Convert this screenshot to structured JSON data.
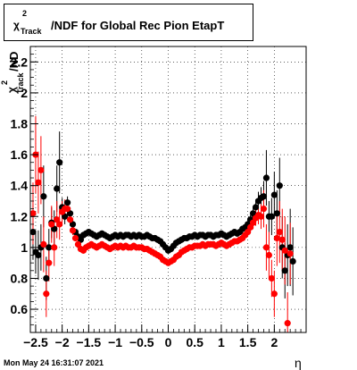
{
  "title": {
    "chi": "χ",
    "sup": "2",
    "sub": "Track",
    "rest": "/NDF for Global Rec Pion EtapT"
  },
  "ylabel": {
    "chi": "χ",
    "sup": "2",
    "sub": "Track",
    "rest": "/ND"
  },
  "xlabel": "η",
  "footer": "Mon May 24 16:31:07 2021",
  "chart_data": {
    "type": "scatter",
    "xlabel": "η",
    "ylabel": "χ²_Track/ND",
    "xlim": [
      -2.6,
      2.6
    ],
    "ylim": [
      0.45,
      2.3
    ],
    "grid": true,
    "x_ticks": [
      -2.5,
      -2,
      -1.5,
      -1,
      -0.5,
      0,
      0.5,
      1,
      1.5,
      2
    ],
    "x_tick_labels": [
      "−2.5",
      "−2",
      "−1.5",
      "−1",
      "−0.5",
      "0",
      "0.5",
      "1",
      "1.5",
      "2"
    ],
    "y_ticks": [
      0.6,
      0.8,
      1,
      1.2,
      1.4,
      1.6,
      1.8,
      2,
      2.2
    ],
    "y_tick_labels": [
      "0.6",
      "0.8",
      "1",
      "1.2",
      "1.4",
      "1.6",
      "1.8",
      "2",
      "2.2"
    ],
    "series": [
      {
        "color": "#000000",
        "points": [
          [
            -2.55,
            1.1,
            0.18
          ],
          [
            -2.5,
            0.97,
            0.14
          ],
          [
            -2.45,
            0.95,
            0.16
          ],
          [
            -2.4,
            1.0,
            0.15
          ],
          [
            -2.35,
            1.33,
            0.2
          ],
          [
            -2.3,
            0.8,
            0.14
          ],
          [
            -2.25,
            1.0,
            0.12
          ],
          [
            -2.2,
            1.16,
            0.1
          ],
          [
            -2.15,
            1.12,
            0.12
          ],
          [
            -2.1,
            1.38,
            0.15
          ],
          [
            -2.05,
            1.55,
            0.2
          ],
          [
            -2.0,
            1.26,
            0.06
          ],
          [
            -1.95,
            1.2,
            0.05
          ],
          [
            -1.9,
            1.29,
            0.04
          ],
          [
            -1.85,
            1.22,
            0.04
          ],
          [
            -1.8,
            1.15,
            0.03
          ],
          [
            -1.75,
            1.1,
            0.02
          ],
          [
            -1.7,
            1.07,
            0.02
          ],
          [
            -1.65,
            1.05,
            0.02
          ],
          [
            -1.6,
            1.08,
            0.02
          ],
          [
            -1.55,
            1.09,
            0.02
          ],
          [
            -1.5,
            1.1,
            0.02
          ],
          [
            -1.45,
            1.09,
            0.02
          ],
          [
            -1.4,
            1.08,
            0.02
          ],
          [
            -1.35,
            1.07,
            0.02
          ],
          [
            -1.3,
            1.08,
            0.02
          ],
          [
            -1.25,
            1.09,
            0.02
          ],
          [
            -1.2,
            1.08,
            0.02
          ],
          [
            -1.15,
            1.07,
            0.02
          ],
          [
            -1.1,
            1.06,
            0.02
          ],
          [
            -1.05,
            1.07,
            0.02
          ],
          [
            -1.0,
            1.08,
            0.02
          ],
          [
            -0.95,
            1.07,
            0.02
          ],
          [
            -0.9,
            1.08,
            0.02
          ],
          [
            -0.85,
            1.07,
            0.02
          ],
          [
            -0.8,
            1.08,
            0.02
          ],
          [
            -0.75,
            1.08,
            0.02
          ],
          [
            -0.7,
            1.07,
            0.02
          ],
          [
            -0.65,
            1.08,
            0.02
          ],
          [
            -0.6,
            1.07,
            0.02
          ],
          [
            -0.55,
            1.08,
            0.02
          ],
          [
            -0.5,
            1.07,
            0.02
          ],
          [
            -0.45,
            1.07,
            0.02
          ],
          [
            -0.4,
            1.08,
            0.02
          ],
          [
            -0.35,
            1.07,
            0.02
          ],
          [
            -0.3,
            1.06,
            0.02
          ],
          [
            -0.25,
            1.06,
            0.02
          ],
          [
            -0.2,
            1.05,
            0.02
          ],
          [
            -0.15,
            1.04,
            0.02
          ],
          [
            -0.1,
            1.02,
            0.02
          ],
          [
            -0.05,
            1.0,
            0.02
          ],
          [
            0.0,
            0.98,
            0.02
          ],
          [
            0.05,
            0.99,
            0.02
          ],
          [
            0.1,
            1.01,
            0.02
          ],
          [
            0.15,
            1.03,
            0.02
          ],
          [
            0.2,
            1.04,
            0.02
          ],
          [
            0.25,
            1.05,
            0.02
          ],
          [
            0.3,
            1.06,
            0.02
          ],
          [
            0.35,
            1.06,
            0.02
          ],
          [
            0.4,
            1.07,
            0.02
          ],
          [
            0.45,
            1.07,
            0.02
          ],
          [
            0.5,
            1.08,
            0.02
          ],
          [
            0.55,
            1.07,
            0.02
          ],
          [
            0.6,
            1.08,
            0.02
          ],
          [
            0.65,
            1.08,
            0.02
          ],
          [
            0.7,
            1.07,
            0.02
          ],
          [
            0.75,
            1.08,
            0.02
          ],
          [
            0.8,
            1.08,
            0.02
          ],
          [
            0.85,
            1.07,
            0.02
          ],
          [
            0.9,
            1.08,
            0.02
          ],
          [
            0.95,
            1.08,
            0.02
          ],
          [
            1.0,
            1.09,
            0.02
          ],
          [
            1.05,
            1.08,
            0.02
          ],
          [
            1.1,
            1.07,
            0.02
          ],
          [
            1.15,
            1.08,
            0.02
          ],
          [
            1.2,
            1.09,
            0.02
          ],
          [
            1.25,
            1.1,
            0.02
          ],
          [
            1.3,
            1.09,
            0.02
          ],
          [
            1.35,
            1.1,
            0.02
          ],
          [
            1.4,
            1.12,
            0.02
          ],
          [
            1.45,
            1.13,
            0.02
          ],
          [
            1.5,
            1.15,
            0.03
          ],
          [
            1.55,
            1.18,
            0.03
          ],
          [
            1.6,
            1.22,
            0.04
          ],
          [
            1.65,
            1.26,
            0.05
          ],
          [
            1.7,
            1.3,
            0.06
          ],
          [
            1.75,
            1.32,
            0.07
          ],
          [
            1.8,
            1.33,
            0.1
          ],
          [
            1.85,
            1.45,
            0.18
          ],
          [
            1.9,
            1.2,
            0.1
          ],
          [
            1.95,
            1.2,
            0.12
          ],
          [
            2.0,
            1.34,
            0.15
          ],
          [
            2.05,
            1.22,
            0.15
          ],
          [
            2.1,
            1.4,
            0.18
          ],
          [
            2.15,
            1.0,
            0.2
          ],
          [
            2.2,
            0.85,
            0.18
          ],
          [
            2.25,
            0.95,
            0.2
          ],
          [
            2.3,
            1.0,
            0.25
          ],
          [
            2.35,
            0.91,
            0.22
          ]
        ]
      },
      {
        "color": "#ff0000",
        "points": [
          [
            -2.55,
            1.22,
            0.2
          ],
          [
            -2.5,
            1.6,
            0.25
          ],
          [
            -2.45,
            1.42,
            0.2
          ],
          [
            -2.4,
            1.5,
            0.22
          ],
          [
            -2.35,
            1.02,
            0.18
          ],
          [
            -2.3,
            0.7,
            0.15
          ],
          [
            -2.25,
            0.9,
            0.12
          ],
          [
            -2.2,
            1.15,
            0.12
          ],
          [
            -2.15,
            1.0,
            0.12
          ],
          [
            -2.1,
            1.18,
            0.12
          ],
          [
            -2.05,
            1.15,
            0.1
          ],
          [
            -2.0,
            1.23,
            0.07
          ],
          [
            -1.95,
            1.25,
            0.06
          ],
          [
            -1.9,
            1.25,
            0.05
          ],
          [
            -1.85,
            1.18,
            0.04
          ],
          [
            -1.8,
            1.11,
            0.03
          ],
          [
            -1.75,
            1.06,
            0.02
          ],
          [
            -1.7,
            1.02,
            0.02
          ],
          [
            -1.65,
            0.99,
            0.02
          ],
          [
            -1.6,
            0.98,
            0.02
          ],
          [
            -1.55,
            1.0,
            0.02
          ],
          [
            -1.5,
            1.01,
            0.02
          ],
          [
            -1.45,
            1.02,
            0.02
          ],
          [
            -1.4,
            1.01,
            0.02
          ],
          [
            -1.35,
            1.0,
            0.02
          ],
          [
            -1.3,
            1.01,
            0.02
          ],
          [
            -1.25,
            1.02,
            0.02
          ],
          [
            -1.2,
            1.01,
            0.02
          ],
          [
            -1.15,
            1.0,
            0.02
          ],
          [
            -1.1,
            0.99,
            0.02
          ],
          [
            -1.05,
            1.0,
            0.02
          ],
          [
            -1.0,
            1.01,
            0.02
          ],
          [
            -0.95,
            1.0,
            0.02
          ],
          [
            -0.9,
            1.01,
            0.02
          ],
          [
            -0.85,
            1.0,
            0.02
          ],
          [
            -0.8,
            1.01,
            0.02
          ],
          [
            -0.75,
            1.0,
            0.02
          ],
          [
            -0.7,
            1.0,
            0.02
          ],
          [
            -0.65,
            1.01,
            0.02
          ],
          [
            -0.6,
            1.0,
            0.02
          ],
          [
            -0.55,
            1.0,
            0.02
          ],
          [
            -0.5,
            1.0,
            0.02
          ],
          [
            -0.45,
            0.99,
            0.02
          ],
          [
            -0.4,
            0.99,
            0.02
          ],
          [
            -0.35,
            0.98,
            0.02
          ],
          [
            -0.3,
            0.97,
            0.02
          ],
          [
            -0.25,
            0.96,
            0.02
          ],
          [
            -0.2,
            0.95,
            0.02
          ],
          [
            -0.15,
            0.94,
            0.02
          ],
          [
            -0.1,
            0.92,
            0.02
          ],
          [
            -0.05,
            0.91,
            0.02
          ],
          [
            0.0,
            0.9,
            0.02
          ],
          [
            0.05,
            0.91,
            0.02
          ],
          [
            0.1,
            0.92,
            0.02
          ],
          [
            0.15,
            0.94,
            0.02
          ],
          [
            0.2,
            0.95,
            0.02
          ],
          [
            0.25,
            0.97,
            0.02
          ],
          [
            0.3,
            0.98,
            0.02
          ],
          [
            0.35,
            0.99,
            0.02
          ],
          [
            0.4,
            1.0,
            0.02
          ],
          [
            0.45,
            1.0,
            0.02
          ],
          [
            0.5,
            1.01,
            0.02
          ],
          [
            0.55,
            1.01,
            0.02
          ],
          [
            0.6,
            1.01,
            0.02
          ],
          [
            0.65,
            1.02,
            0.02
          ],
          [
            0.7,
            1.01,
            0.02
          ],
          [
            0.75,
            1.02,
            0.02
          ],
          [
            0.8,
            1.02,
            0.02
          ],
          [
            0.85,
            1.02,
            0.02
          ],
          [
            0.9,
            1.01,
            0.02
          ],
          [
            0.95,
            1.02,
            0.02
          ],
          [
            1.0,
            1.03,
            0.02
          ],
          [
            1.05,
            1.02,
            0.02
          ],
          [
            1.1,
            1.01,
            0.02
          ],
          [
            1.15,
            1.02,
            0.02
          ],
          [
            1.2,
            1.03,
            0.02
          ],
          [
            1.25,
            1.04,
            0.02
          ],
          [
            1.3,
            1.04,
            0.02
          ],
          [
            1.35,
            1.05,
            0.02
          ],
          [
            1.4,
            1.06,
            0.02
          ],
          [
            1.45,
            1.08,
            0.02
          ],
          [
            1.5,
            1.1,
            0.03
          ],
          [
            1.55,
            1.13,
            0.03
          ],
          [
            1.6,
            1.16,
            0.04
          ],
          [
            1.65,
            1.19,
            0.05
          ],
          [
            1.7,
            1.21,
            0.06
          ],
          [
            1.75,
            1.2,
            0.08
          ],
          [
            1.8,
            1.25,
            0.12
          ],
          [
            1.85,
            1.0,
            0.15
          ],
          [
            1.9,
            0.95,
            0.15
          ],
          [
            1.95,
            0.8,
            0.12
          ],
          [
            2.0,
            0.7,
            0.15
          ],
          [
            2.05,
            1.06,
            0.18
          ],
          [
            2.1,
            1.1,
            0.2
          ],
          [
            2.15,
            1.05,
            0.2
          ],
          [
            2.2,
            0.98,
            0.22
          ],
          [
            2.25,
            0.51,
            0.2
          ],
          [
            2.3,
            0.96,
            0.2
          ]
        ]
      }
    ]
  }
}
